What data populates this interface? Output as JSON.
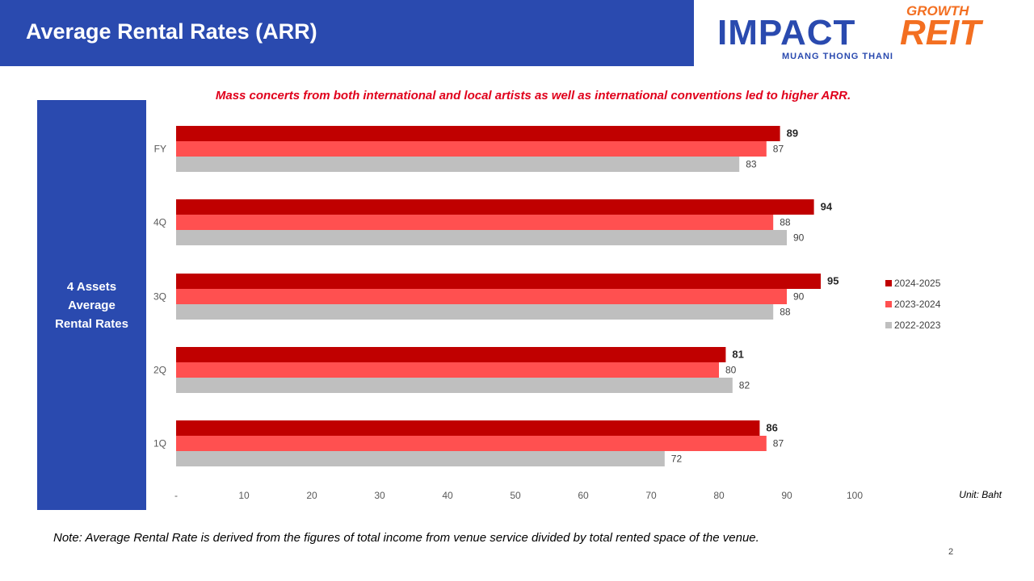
{
  "header": {
    "title": "Average Rental Rates (ARR)"
  },
  "logo": {
    "growth": "GROWTH",
    "impact": "IMPACT",
    "reit": "REIT",
    "subtitle": "MUANG THONG THANI"
  },
  "side_panel": {
    "line1": "4 Assets",
    "line2": "Average",
    "line3": "Rental Rates"
  },
  "headline": "Mass concerts from both international and local artists as well as international conventions led to higher ARR.",
  "unit_label": "Unit: Baht",
  "note": "Note: Average Rental Rate is derived from the figures of total income from venue service divided by total rented space of the venue.",
  "page_number": "2",
  "colors": {
    "s2024": "#c00000",
    "s2023": "#ff5050",
    "s2022": "#bfbfbf",
    "brand_blue": "#2a4aaf",
    "brand_orange": "#f36f21"
  },
  "chart_data": {
    "type": "bar",
    "orientation": "horizontal",
    "categories": [
      "FY",
      "4Q",
      "3Q",
      "2Q",
      "1Q"
    ],
    "series": [
      {
        "name": "2024-2025",
        "values": [
          89,
          94,
          95,
          81,
          86
        ],
        "color": "#c00000",
        "bold_labels": true
      },
      {
        "name": "2023-2024",
        "values": [
          87,
          88,
          90,
          80,
          87
        ],
        "color": "#ff5050",
        "bold_labels": false
      },
      {
        "name": "2022-2023",
        "values": [
          83,
          90,
          88,
          82,
          72
        ],
        "color": "#bfbfbf",
        "bold_labels": false
      }
    ],
    "xlim": [
      0,
      100
    ],
    "x_ticks": [
      "-",
      "10",
      "20",
      "30",
      "40",
      "50",
      "60",
      "70",
      "80",
      "90",
      "100"
    ],
    "legend_position": "right",
    "grid": false
  }
}
